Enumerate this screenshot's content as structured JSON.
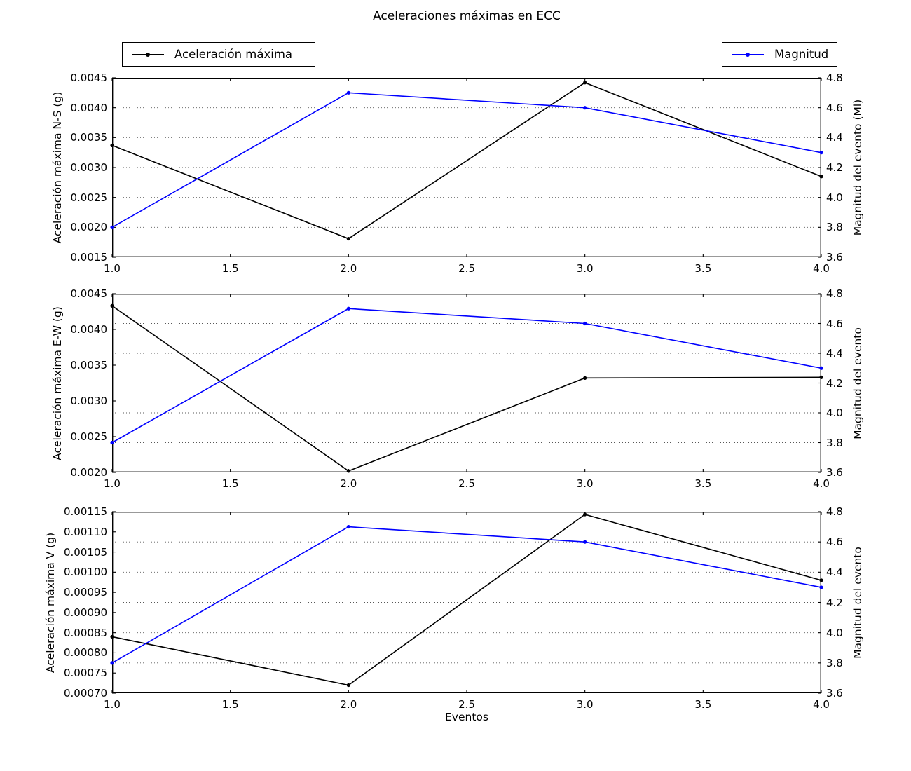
{
  "figure": {
    "title": "Aceleraciones máximas en ECC",
    "xlabel": "Eventos",
    "background": "#ffffff",
    "accent_black": "#000000",
    "accent_blue": "#0000ff"
  },
  "legends": {
    "acceleration": {
      "label": "Aceleración máxima",
      "color": "#000000"
    },
    "magnitude": {
      "label": "Magnitud",
      "color": "#0000ff"
    }
  },
  "chart_data": [
    {
      "type": "line",
      "x": [
        1,
        2,
        3,
        4
      ],
      "xlim": [
        1,
        4
      ],
      "x_ticks": [
        "1.0",
        "1.5",
        "2.0",
        "2.5",
        "3.0",
        "3.5",
        "4.0"
      ],
      "grid": "dotted, at right-axis ticks",
      "left_axis": {
        "label": "Aceleración máxima N-S (g)",
        "lim": [
          0.0015,
          0.0045
        ],
        "ticks": [
          "0.0015",
          "0.0020",
          "0.0025",
          "0.0030",
          "0.0035",
          "0.0040",
          "0.0045"
        ]
      },
      "right_axis": {
        "label": "Magnitud del evento (Ml)",
        "lim": [
          3.6,
          4.8
        ],
        "ticks": [
          "3.6",
          "3.8",
          "4.0",
          "4.2",
          "4.4",
          "4.6",
          "4.8"
        ]
      },
      "series": [
        {
          "name": "Aceleración máxima",
          "axis": "left",
          "color": "#000000",
          "values": [
            0.00337,
            0.00181,
            0.00442,
            0.00285
          ]
        },
        {
          "name": "Magnitud",
          "axis": "right",
          "color": "#0000ff",
          "values": [
            3.8,
            4.7,
            4.6,
            4.3
          ]
        }
      ]
    },
    {
      "type": "line",
      "x": [
        1,
        2,
        3,
        4
      ],
      "xlim": [
        1,
        4
      ],
      "x_ticks": [
        "1.0",
        "1.5",
        "2.0",
        "2.5",
        "3.0",
        "3.5",
        "4.0"
      ],
      "grid": "dotted, at right-axis ticks",
      "left_axis": {
        "label": "Aceleración máxima E-W (g)",
        "lim": [
          0.002,
          0.0045
        ],
        "ticks": [
          "0.0020",
          "0.0025",
          "0.0030",
          "0.0035",
          "0.0040",
          "0.0045"
        ]
      },
      "right_axis": {
        "label": "Magnitud del evento",
        "lim": [
          3.6,
          4.8
        ],
        "ticks": [
          "3.6",
          "3.8",
          "4.0",
          "4.2",
          "4.4",
          "4.6",
          "4.8"
        ]
      },
      "series": [
        {
          "name": "Aceleración máxima",
          "axis": "left",
          "color": "#000000",
          "values": [
            0.00433,
            0.00202,
            0.00332,
            0.00333
          ]
        },
        {
          "name": "Magnitud",
          "axis": "right",
          "color": "#0000ff",
          "values": [
            3.8,
            4.7,
            4.6,
            4.3
          ]
        }
      ]
    },
    {
      "type": "line",
      "x": [
        1,
        2,
        3,
        4
      ],
      "xlim": [
        1,
        4
      ],
      "x_ticks": [
        "1.0",
        "1.5",
        "2.0",
        "2.5",
        "3.0",
        "3.5",
        "4.0"
      ],
      "grid": "dotted, at right-axis ticks",
      "left_axis": {
        "label": "Aceleración máxima V (g)",
        "lim": [
          0.0007,
          0.00115
        ],
        "ticks": [
          "0.00070",
          "0.00075",
          "0.00080",
          "0.00085",
          "0.00090",
          "0.00095",
          "0.00100",
          "0.00105",
          "0.00110",
          "0.00115"
        ]
      },
      "right_axis": {
        "label": "Magnitud del evento",
        "lim": [
          3.6,
          4.8
        ],
        "ticks": [
          "3.6",
          "3.8",
          "4.0",
          "4.2",
          "4.4",
          "4.6",
          "4.8"
        ]
      },
      "series": [
        {
          "name": "Aceleración máxima",
          "axis": "left",
          "color": "#000000",
          "values": [
            0.00084,
            0.00072,
            0.001143,
            0.00098
          ]
        },
        {
          "name": "Magnitud",
          "axis": "right",
          "color": "#0000ff",
          "values": [
            3.8,
            4.7,
            4.6,
            4.3
          ]
        }
      ]
    }
  ]
}
